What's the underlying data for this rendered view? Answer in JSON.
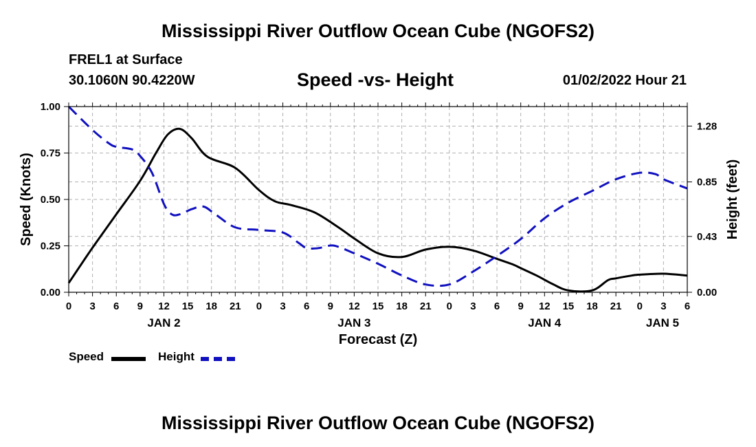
{
  "header": {
    "title": "Mississippi River Outflow Ocean Cube (NGOFS2)",
    "station": "FREL1 at Surface",
    "coords": "30.1060N  90.4220W",
    "chart_title": "Speed -vs- Height",
    "datetime": "01/02/2022 Hour 21"
  },
  "footer": {
    "title": "Mississippi River Outflow Ocean Cube (NGOFS2)"
  },
  "legend": {
    "speed_label": "Speed",
    "height_label": "Height"
  },
  "colors": {
    "speed": "#000000",
    "height": "#1010c0",
    "grid": "#b0b0b0"
  },
  "chart_data": {
    "type": "line",
    "title": "Speed -vs- Height",
    "xlabel": "Forecast (Z)",
    "ylabel": "Speed (Knots)",
    "y2label": "Height (feet)",
    "x_unit": "forecast hours",
    "xlim": [
      0,
      78
    ],
    "ylim": [
      0,
      1.0
    ],
    "y2lim": [
      0.0,
      1.43
    ],
    "x_ticks": [
      0,
      3,
      6,
      9,
      12,
      15,
      18,
      21,
      24,
      27,
      30,
      33,
      36,
      39,
      42,
      45,
      48,
      51,
      54,
      57,
      60,
      63,
      66,
      69,
      72,
      75,
      78
    ],
    "x_tick_labels": [
      "0",
      "3",
      "6",
      "9",
      "12",
      "15",
      "18",
      "21",
      "0",
      "3",
      "6",
      "9",
      "12",
      "15",
      "18",
      "21",
      "0",
      "3",
      "6",
      "9",
      "12",
      "15",
      "18",
      "21",
      "0",
      "3",
      "6"
    ],
    "date_labels": [
      {
        "label": "JAN 2",
        "x": 12
      },
      {
        "label": "JAN 3",
        "x": 36
      },
      {
        "label": "JAN 4",
        "x": 60
      },
      {
        "label": "JAN 5",
        "x": 78
      }
    ],
    "y_ticks": [
      0.0,
      0.25,
      0.5,
      0.75,
      1.0
    ],
    "y_tick_labels": [
      "0.00",
      "0.25",
      "0.50",
      "0.75",
      "1.00"
    ],
    "y2_ticks": [
      0.0,
      0.43,
      0.85,
      1.28
    ],
    "y2_tick_labels": [
      "0.00",
      "0.43",
      "0.85",
      "1.28"
    ],
    "grid": true,
    "series": [
      {
        "name": "Speed",
        "axis": "left",
        "style": "solid",
        "x": [
          0,
          3,
          6,
          9,
          11,
          12.5,
          14,
          15.5,
          17.5,
          21,
          24,
          26,
          28,
          31,
          34,
          36,
          39,
          42,
          45,
          48,
          51,
          54,
          56,
          57,
          59,
          61,
          63,
          66,
          68,
          69,
          71,
          72,
          75,
          78
        ],
        "values": [
          0.05,
          0.24,
          0.42,
          0.6,
          0.75,
          0.85,
          0.88,
          0.83,
          0.73,
          0.67,
          0.55,
          0.49,
          0.47,
          0.43,
          0.35,
          0.29,
          0.21,
          0.19,
          0.23,
          0.245,
          0.225,
          0.18,
          0.15,
          0.13,
          0.09,
          0.045,
          0.01,
          0.01,
          0.065,
          0.075,
          0.09,
          0.095,
          0.1,
          0.09
        ]
      },
      {
        "name": "Height",
        "axis": "right",
        "style": "dashed",
        "x": [
          0,
          3,
          5,
          6,
          8,
          9,
          10.5,
          12,
          13,
          14,
          15.5,
          17,
          18.5,
          21,
          24,
          27,
          29,
          30,
          31.5,
          33,
          34,
          36,
          39,
          42,
          45,
          48,
          51,
          54,
          57,
          60,
          63,
          66,
          69,
          72,
          74,
          75,
          78
        ],
        "values": [
          1.43,
          1.25,
          1.15,
          1.12,
          1.1,
          1.05,
          0.92,
          0.68,
          0.6,
          0.6,
          0.64,
          0.66,
          0.6,
          0.5,
          0.48,
          0.46,
          0.38,
          0.34,
          0.34,
          0.36,
          0.35,
          0.3,
          0.22,
          0.13,
          0.06,
          0.06,
          0.16,
          0.28,
          0.41,
          0.57,
          0.69,
          0.78,
          0.87,
          0.92,
          0.91,
          0.87,
          0.8
        ]
      }
    ]
  }
}
